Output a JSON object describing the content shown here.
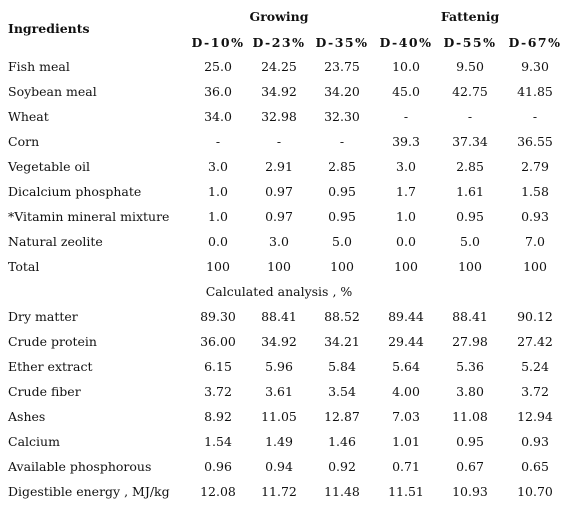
{
  "table": {
    "header": {
      "first": "Ingredients",
      "groups": [
        "Growing",
        "Fattenig"
      ],
      "columns": [
        "D-10%",
        "D-23%",
        "D-35%",
        "D-40%",
        "D-55%",
        "D-67%"
      ]
    },
    "rows": [
      [
        "Fish meal",
        "25.0",
        "24.25",
        "23.75",
        "10.0",
        "9.50",
        "9.30"
      ],
      [
        "Soybean meal",
        "36.0",
        "34.92",
        "34.20",
        "45.0",
        "42.75",
        "41.85"
      ],
      [
        "Wheat",
        "34.0",
        "32.98",
        "32.30",
        "-",
        "-",
        "-"
      ],
      [
        "Corn",
        "-",
        "-",
        "-",
        "39.3",
        "37.34",
        "36.55"
      ],
      [
        "Vegetable oil",
        "3.0",
        "2.91",
        "2.85",
        "3.0",
        "2.85",
        "2.79"
      ],
      [
        "Dicalcium phosphate",
        "1.0",
        "0.97",
        "0.95",
        "1.7",
        "1.61",
        "1.58"
      ],
      [
        "*Vitamin mineral mixture",
        "1.0",
        "0.97",
        "0.95",
        "1.0",
        "0.95",
        "0.93"
      ],
      [
        "Natural zeolite",
        "0.0",
        "3.0",
        "5.0",
        "0.0",
        "5.0",
        "7.0"
      ],
      [
        "Total",
        "100",
        "100",
        "100",
        "100",
        "100",
        "100"
      ]
    ],
    "subheading": "Calculated analysis , %",
    "analysis_rows": [
      [
        "Dry matter",
        "89.30",
        "88.41",
        "88.52",
        "89.44",
        "88.41",
        "90.12"
      ],
      [
        "Crude protein",
        "36.00",
        "34.92",
        "34.21",
        "29.44",
        "27.98",
        "27.42"
      ],
      [
        "Ether extract",
        "6.15",
        "5.96",
        "5.84",
        "5.64",
        "5.36",
        "5.24"
      ],
      [
        "Crude fiber",
        "3.72",
        "3.61",
        "3.54",
        "4.00",
        "3.80",
        "3.72"
      ],
      [
        "Ashes",
        "8.92",
        "11.05",
        "12.87",
        "7.03",
        "11.08",
        "12.94"
      ],
      [
        "Calcium",
        "1.54",
        "1.49",
        "1.46",
        "1.01",
        "0.95",
        "0.93"
      ],
      [
        "Available phosphorous",
        "0.96",
        "0.94",
        "0.92",
        "0.71",
        "0.67",
        "0.65"
      ],
      [
        "Digestible energy , MJ/kg",
        "12.08",
        "11.72",
        "11.48",
        "11.51",
        "10.93",
        "10.70"
      ]
    ]
  }
}
